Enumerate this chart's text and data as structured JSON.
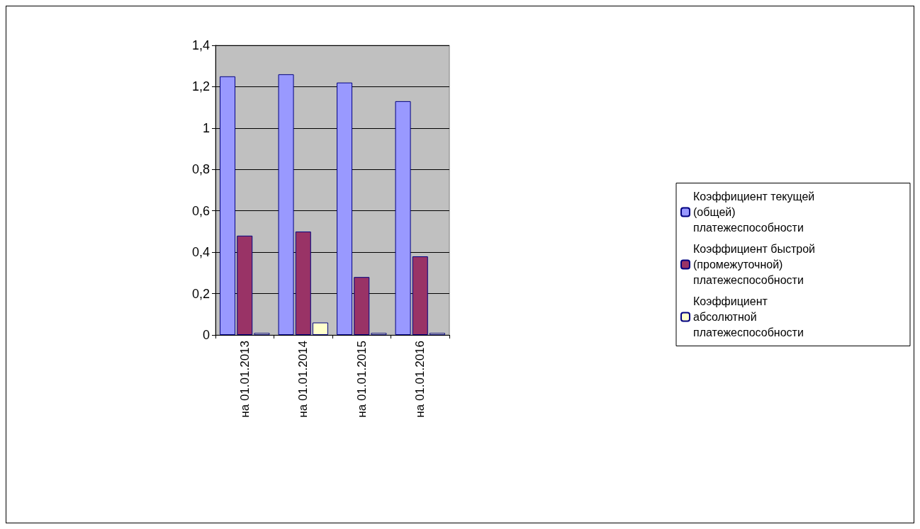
{
  "chart_data": {
    "type": "bar",
    "categories": [
      "на 01.01.2013",
      "на 01.01.2014",
      "на 01.01.2015",
      "на 01.01.2016"
    ],
    "series": [
      {
        "name": "Коэффициент текущей (общей) платежеспособности",
        "color": "#9999ff",
        "values": [
          1.25,
          1.26,
          1.22,
          1.13
        ]
      },
      {
        "name": "Коэффициент быстрой (промежуточной) платежеспособности",
        "color": "#993366",
        "values": [
          0.48,
          0.5,
          0.28,
          0.38
        ]
      },
      {
        "name": "Коэффициент абсолютной платежеспособности",
        "color": "#ffffcc",
        "values": [
          0.01,
          0.06,
          0.01,
          0.01
        ]
      }
    ],
    "ylim": [
      0,
      1.4
    ],
    "yticks": [
      {
        "value": 0,
        "label": "0"
      },
      {
        "value": 0.2,
        "label": "0,2"
      },
      {
        "value": 0.4,
        "label": "0,4"
      },
      {
        "value": 0.6,
        "label": "0,6"
      },
      {
        "value": 0.8,
        "label": "0,8"
      },
      {
        "value": 1,
        "label": "1"
      },
      {
        "value": 1.2,
        "label": "1,2"
      },
      {
        "value": 1.4,
        "label": "1,4"
      }
    ],
    "grid": "y",
    "legend": "right"
  }
}
